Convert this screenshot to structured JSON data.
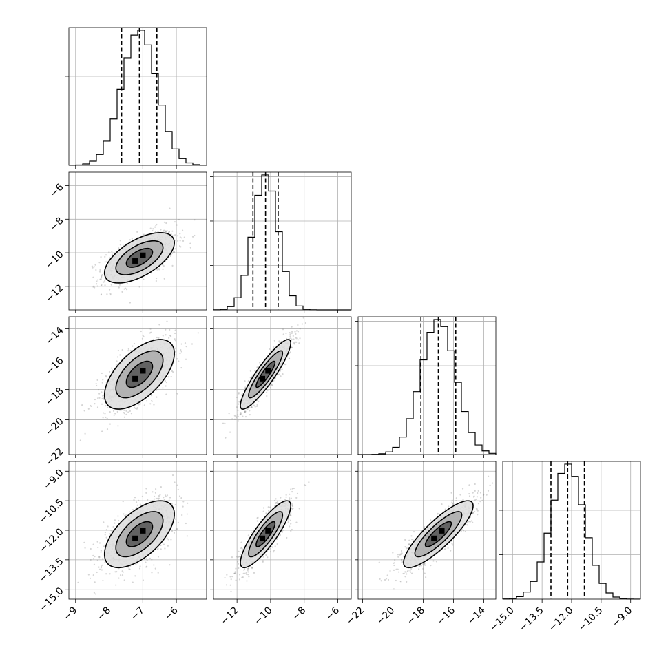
{
  "chart_data": {
    "type": "corner",
    "parameters": [
      {
        "range": [
          -9.2,
          -5.1
        ],
        "ticks": [
          -9,
          -8,
          -7,
          -6
        ],
        "tick_labels": [
          "−9",
          "−8",
          "−7",
          "−6"
        ],
        "mean": -7.1,
        "sd": 0.52,
        "quantiles": [
          -7.63,
          -7.1,
          -6.58
        ]
      },
      {
        "range": [
          -13.4,
          -5.2
        ],
        "ticks": [
          -12,
          -10,
          -8,
          -6
        ],
        "tick_labels": [
          "−12",
          "−10",
          "−8",
          "−6"
        ],
        "mean": -10.3,
        "sd": 0.75,
        "quantiles": [
          -11.05,
          -10.3,
          -9.55
        ]
      },
      {
        "range": [
          -22.3,
          -13.2
        ],
        "ticks": [
          -22,
          -20,
          -18,
          -16,
          -14
        ],
        "tick_labels": [
          "−22",
          "−20",
          "−18",
          "−16",
          "−14"
        ],
        "mean": -17.0,
        "sd": 1.15,
        "quantiles": [
          -18.15,
          -17.0,
          -15.85
        ]
      },
      {
        "range": [
          -15.5,
          -8.5
        ],
        "ticks": [
          -15.0,
          -13.5,
          -12.0,
          -10.5,
          -9.0
        ],
        "tick_labels": [
          "−15.0",
          "−13.5",
          "−12.0",
          "−10.5",
          "−9.0"
        ],
        "mean": -12.2,
        "sd": 0.85,
        "quantiles": [
          -13.05,
          -12.2,
          -11.35
        ]
      }
    ],
    "correlations": [
      [
        1,
        0.6,
        0.6,
        0.6
      ],
      [
        0.6,
        1,
        0.9,
        0.85
      ],
      [
        0.6,
        0.9,
        1,
        0.85
      ],
      [
        0.6,
        0.85,
        0.85,
        1
      ]
    ],
    "histogram_bins": 20,
    "grid": true,
    "hist_y_ticks": 3,
    "colors": {
      "frame": "#000000",
      "grid": "#b0b0b0",
      "points": "#888888",
      "contour_fill_light": "#dddddd",
      "contour_fill_mid": "#aaaaaa",
      "contour_fill_dark": "#555555",
      "peak": "#000000"
    }
  }
}
